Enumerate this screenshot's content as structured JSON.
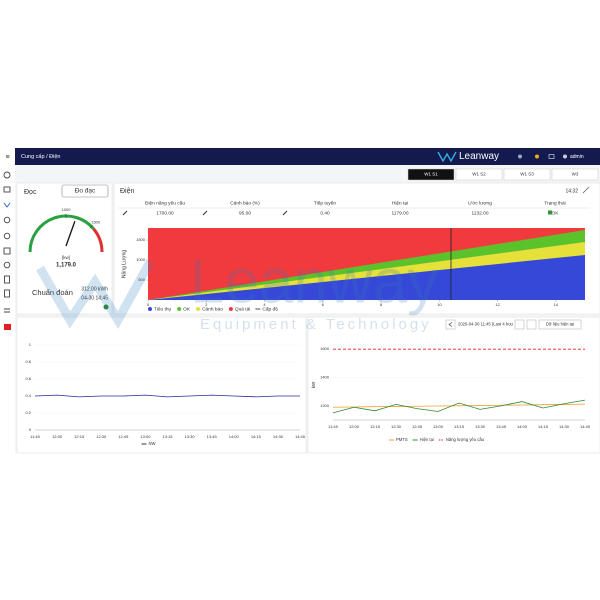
{
  "header": {
    "menu": "≡",
    "breadcrumb": "Cung cấp / Điện",
    "logo": "Leanway",
    "user": "admin"
  },
  "tabs": [
    "W1 S1",
    "W1 S2",
    "W1 S3",
    "W3"
  ],
  "reading": {
    "title": "Đọc",
    "button": "Đo đạc",
    "gauge": {
      "range": [
        0,
        2000
      ],
      "ticks": [
        1000,
        1500
      ],
      "value": 1179,
      "unit": "[kw]",
      "value_label": "1,179.0"
    },
    "diagnosis": "Chuẩn đoán",
    "energy": "312.00 kWh",
    "time": "04-30 14:45"
  },
  "power": {
    "title": "Điện",
    "time": "14:32",
    "columns": [
      "Điện năng yêu cầu",
      "Cảnh báo (%)",
      "Tiếp tuyến",
      "Hiện tại",
      "Ước lượng",
      "Trạng thái"
    ],
    "row": [
      "1700.00",
      "95.00",
      "0.40",
      "1179.00",
      "1132.00",
      "OK"
    ],
    "chart": {
      "y_label": "Năng Lượng",
      "x": [
        0,
        15
      ],
      "xlim": [
        0,
        15
      ],
      "xticks": [
        0,
        2,
        4,
        6,
        8,
        10,
        12,
        14
      ],
      "ylim": [
        0,
        1800
      ],
      "yticks": [
        500,
        1000,
        1500
      ],
      "series": [
        {
          "name": "Tiêu thụ",
          "color": "#3548d8",
          "values": [
            0,
            1125
          ]
        },
        {
          "name": "OK",
          "color": "#5cc22c",
          "values": [
            0,
            1750
          ]
        },
        {
          "name": "Cảnh báo",
          "color": "#e6e03a",
          "values": [
            0,
            1450
          ]
        },
        {
          "name": "Quá tải",
          "color": "#f03a3e",
          "values": [
            1800,
            1800
          ]
        },
        {
          "name": "Cấp độ",
          "color": "#222222",
          "x": 10.4
        }
      ]
    }
  },
  "trend": {
    "categories": [
      "11:45",
      "12:00",
      "12:15",
      "12:30",
      "12:45",
      "13:00",
      "13:15",
      "13:30",
      "13:45",
      "14:00",
      "14:15",
      "14:30",
      "14:45"
    ],
    "ylim": [
      0,
      1
    ],
    "yticks": [
      0,
      0.2,
      0.4,
      0.6,
      0.8,
      1
    ],
    "series": [
      {
        "name": "NW",
        "color": "#2a2aa0",
        "values": [
          0.4,
          0.41,
          0.39,
          0.4,
          0.4,
          0.41,
          0.39,
          0.4,
          0.41,
          0.4,
          0.39,
          0.4,
          0.4
        ]
      }
    ]
  },
  "history": {
    "range": "2020-04-30 11:45 (Last 4 hou",
    "button": "Dữ liệu hiện tại",
    "y_label": "kW",
    "categories": [
      "11:45",
      "12:00",
      "12:15",
      "12:30",
      "12:45",
      "13:00",
      "13:15",
      "13:30",
      "13:45",
      "14:00",
      "14:15",
      "14:30",
      "14:45"
    ],
    "ylim": [
      1100,
      1700
    ],
    "yticks": [
      1200,
      1400,
      1600
    ],
    "series": [
      {
        "name": "PMTS",
        "color": "#f0a030",
        "values": [
          1190,
          1192,
          1194,
          1195,
          1197,
          1199,
          1200,
          1202,
          1204,
          1206,
          1208,
          1210,
          1212
        ]
      },
      {
        "name": "Hiện tại",
        "color": "#2e8b2e",
        "values": [
          1150,
          1190,
          1165,
          1210,
          1180,
          1160,
          1220,
          1175,
          1200,
          1230,
          1185,
          1215,
          1240
        ]
      },
      {
        "name": "Năng lượng yêu cầu",
        "color": "#e02020",
        "dashed": true,
        "values": [
          1600,
          1600,
          1600,
          1600,
          1600,
          1600,
          1600,
          1600,
          1600,
          1600,
          1600,
          1600,
          1600
        ]
      }
    ]
  },
  "watermark": {
    "brand": "Leanway",
    "tagline": "Equipment & Technology"
  }
}
